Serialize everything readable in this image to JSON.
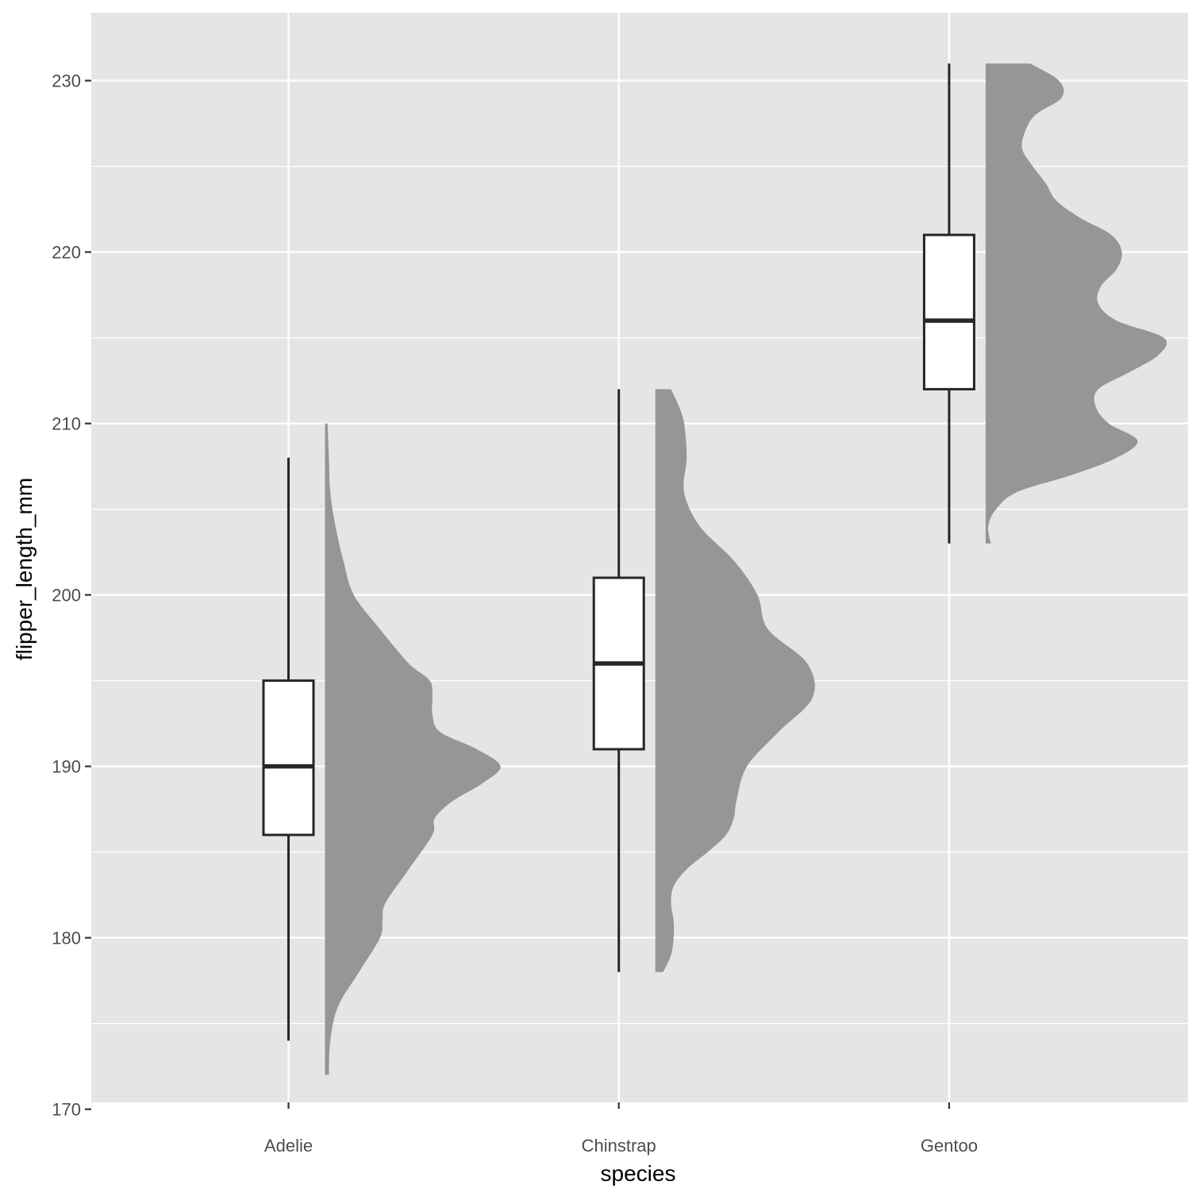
{
  "chart_data": {
    "type": "boxplot-halfviolin",
    "xlabel": "species",
    "ylabel": "flipper_length_mm",
    "categories": [
      "Adelie",
      "Chinstrap",
      "Gentoo"
    ],
    "ylim": [
      169,
      233
    ],
    "y_ticks": [
      170,
      180,
      190,
      200,
      210,
      220,
      230
    ],
    "grid": true,
    "colors": {
      "panel": "#e5e5e5",
      "gridline": "#ffffff",
      "box_fill": "#ffffff",
      "box_stroke": "#262626",
      "violin_fill": "#969696",
      "axis_text": "#4d4d4d"
    },
    "boxes": [
      {
        "category": "Adelie",
        "min": 174,
        "q1": 186,
        "median": 190,
        "q3": 195,
        "max": 208
      },
      {
        "category": "Chinstrap",
        "min": 178,
        "q1": 191,
        "median": 196,
        "q3": 201,
        "max": 212
      },
      {
        "category": "Gentoo",
        "min": 203,
        "q1": 212,
        "median": 216,
        "q3": 221,
        "max": 231
      }
    ],
    "densities": [
      {
        "category": "Adelie",
        "y": [
          172,
          174,
          176,
          178,
          180,
          181,
          182,
          184,
          186,
          187,
          188,
          189,
          190,
          191,
          192,
          193,
          194,
          195,
          196,
          198,
          200,
          202,
          204,
          206,
          208,
          210
        ],
        "density": [
          0.015,
          0.02,
          0.05,
          0.13,
          0.21,
          0.22,
          0.23,
          0.32,
          0.41,
          0.42,
          0.49,
          0.6,
          0.67,
          0.58,
          0.44,
          0.41,
          0.41,
          0.4,
          0.32,
          0.21,
          0.11,
          0.07,
          0.04,
          0.02,
          0.015,
          0.01
        ]
      },
      {
        "category": "Chinstrap",
        "y": [
          178,
          179,
          180,
          181,
          182,
          183,
          184,
          185,
          186,
          187,
          188,
          190,
          192,
          194,
          196,
          198,
          200,
          202,
          204,
          206,
          208,
          210,
          211,
          212
        ],
        "density": [
          0.03,
          0.06,
          0.07,
          0.07,
          0.06,
          0.07,
          0.12,
          0.2,
          0.27,
          0.3,
          0.31,
          0.35,
          0.47,
          0.6,
          0.58,
          0.43,
          0.39,
          0.3,
          0.17,
          0.11,
          0.12,
          0.11,
          0.09,
          0.06
        ]
      },
      {
        "category": "Gentoo",
        "y": [
          203,
          204,
          205,
          206,
          207,
          208,
          209,
          210,
          211,
          212,
          213,
          214,
          215,
          216,
          217,
          218,
          219,
          220,
          221,
          222,
          223,
          224,
          225,
          226,
          227,
          228,
          229,
          230,
          231
        ],
        "density": [
          0.02,
          0.01,
          0.04,
          0.12,
          0.33,
          0.5,
          0.58,
          0.47,
          0.42,
          0.43,
          0.55,
          0.66,
          0.68,
          0.5,
          0.43,
          0.44,
          0.5,
          0.52,
          0.48,
          0.36,
          0.27,
          0.23,
          0.18,
          0.14,
          0.15,
          0.19,
          0.29,
          0.28,
          0.17
        ]
      }
    ]
  }
}
